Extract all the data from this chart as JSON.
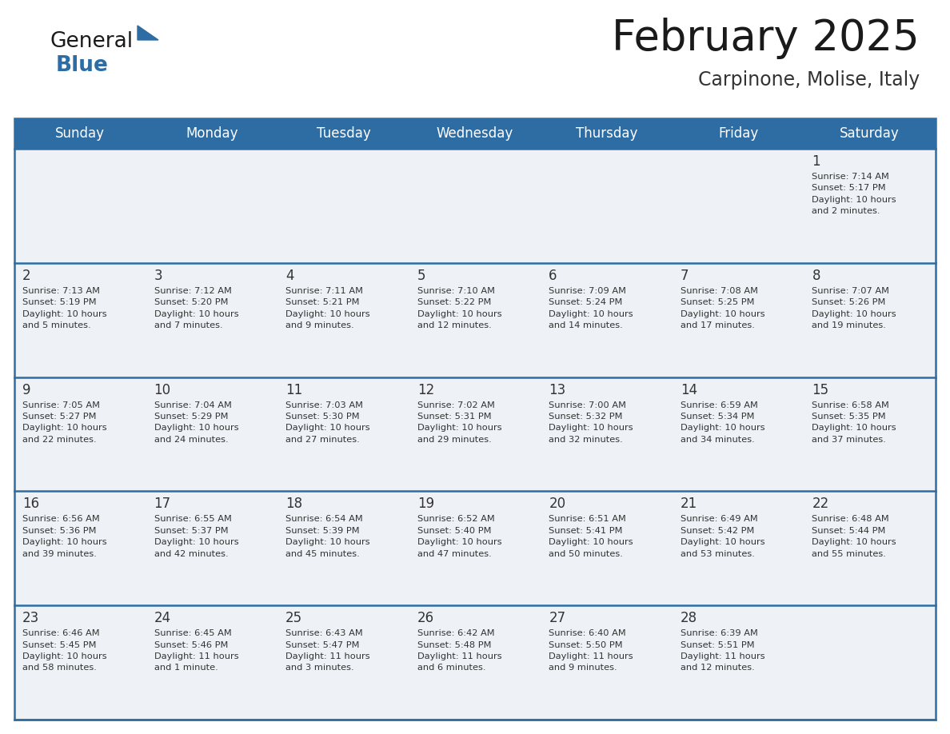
{
  "title": "February 2025",
  "subtitle": "Carpinone, Molise, Italy",
  "days_of_week": [
    "Sunday",
    "Monday",
    "Tuesday",
    "Wednesday",
    "Thursday",
    "Friday",
    "Saturday"
  ],
  "header_bg_color": "#2e6da4",
  "header_text_color": "#ffffff",
  "row_bg_color": "#eef2f7",
  "separator_color": "#2e6da4",
  "date_text_color": "#333333",
  "cell_text_color": "#333333",
  "title_color": "#1a1a1a",
  "subtitle_color": "#333333",
  "logo_general_color": "#1a1a1a",
  "logo_blue_color": "#2e6da4",
  "calendar_data": [
    [
      {
        "day": null,
        "info": ""
      },
      {
        "day": null,
        "info": ""
      },
      {
        "day": null,
        "info": ""
      },
      {
        "day": null,
        "info": ""
      },
      {
        "day": null,
        "info": ""
      },
      {
        "day": null,
        "info": ""
      },
      {
        "day": 1,
        "info": "Sunrise: 7:14 AM\nSunset: 5:17 PM\nDaylight: 10 hours\nand 2 minutes."
      }
    ],
    [
      {
        "day": 2,
        "info": "Sunrise: 7:13 AM\nSunset: 5:19 PM\nDaylight: 10 hours\nand 5 minutes."
      },
      {
        "day": 3,
        "info": "Sunrise: 7:12 AM\nSunset: 5:20 PM\nDaylight: 10 hours\nand 7 minutes."
      },
      {
        "day": 4,
        "info": "Sunrise: 7:11 AM\nSunset: 5:21 PM\nDaylight: 10 hours\nand 9 minutes."
      },
      {
        "day": 5,
        "info": "Sunrise: 7:10 AM\nSunset: 5:22 PM\nDaylight: 10 hours\nand 12 minutes."
      },
      {
        "day": 6,
        "info": "Sunrise: 7:09 AM\nSunset: 5:24 PM\nDaylight: 10 hours\nand 14 minutes."
      },
      {
        "day": 7,
        "info": "Sunrise: 7:08 AM\nSunset: 5:25 PM\nDaylight: 10 hours\nand 17 minutes."
      },
      {
        "day": 8,
        "info": "Sunrise: 7:07 AM\nSunset: 5:26 PM\nDaylight: 10 hours\nand 19 minutes."
      }
    ],
    [
      {
        "day": 9,
        "info": "Sunrise: 7:05 AM\nSunset: 5:27 PM\nDaylight: 10 hours\nand 22 minutes."
      },
      {
        "day": 10,
        "info": "Sunrise: 7:04 AM\nSunset: 5:29 PM\nDaylight: 10 hours\nand 24 minutes."
      },
      {
        "day": 11,
        "info": "Sunrise: 7:03 AM\nSunset: 5:30 PM\nDaylight: 10 hours\nand 27 minutes."
      },
      {
        "day": 12,
        "info": "Sunrise: 7:02 AM\nSunset: 5:31 PM\nDaylight: 10 hours\nand 29 minutes."
      },
      {
        "day": 13,
        "info": "Sunrise: 7:00 AM\nSunset: 5:32 PM\nDaylight: 10 hours\nand 32 minutes."
      },
      {
        "day": 14,
        "info": "Sunrise: 6:59 AM\nSunset: 5:34 PM\nDaylight: 10 hours\nand 34 minutes."
      },
      {
        "day": 15,
        "info": "Sunrise: 6:58 AM\nSunset: 5:35 PM\nDaylight: 10 hours\nand 37 minutes."
      }
    ],
    [
      {
        "day": 16,
        "info": "Sunrise: 6:56 AM\nSunset: 5:36 PM\nDaylight: 10 hours\nand 39 minutes."
      },
      {
        "day": 17,
        "info": "Sunrise: 6:55 AM\nSunset: 5:37 PM\nDaylight: 10 hours\nand 42 minutes."
      },
      {
        "day": 18,
        "info": "Sunrise: 6:54 AM\nSunset: 5:39 PM\nDaylight: 10 hours\nand 45 minutes."
      },
      {
        "day": 19,
        "info": "Sunrise: 6:52 AM\nSunset: 5:40 PM\nDaylight: 10 hours\nand 47 minutes."
      },
      {
        "day": 20,
        "info": "Sunrise: 6:51 AM\nSunset: 5:41 PM\nDaylight: 10 hours\nand 50 minutes."
      },
      {
        "day": 21,
        "info": "Sunrise: 6:49 AM\nSunset: 5:42 PM\nDaylight: 10 hours\nand 53 minutes."
      },
      {
        "day": 22,
        "info": "Sunrise: 6:48 AM\nSunset: 5:44 PM\nDaylight: 10 hours\nand 55 minutes."
      }
    ],
    [
      {
        "day": 23,
        "info": "Sunrise: 6:46 AM\nSunset: 5:45 PM\nDaylight: 10 hours\nand 58 minutes."
      },
      {
        "day": 24,
        "info": "Sunrise: 6:45 AM\nSunset: 5:46 PM\nDaylight: 11 hours\nand 1 minute."
      },
      {
        "day": 25,
        "info": "Sunrise: 6:43 AM\nSunset: 5:47 PM\nDaylight: 11 hours\nand 3 minutes."
      },
      {
        "day": 26,
        "info": "Sunrise: 6:42 AM\nSunset: 5:48 PM\nDaylight: 11 hours\nand 6 minutes."
      },
      {
        "day": 27,
        "info": "Sunrise: 6:40 AM\nSunset: 5:50 PM\nDaylight: 11 hours\nand 9 minutes."
      },
      {
        "day": 28,
        "info": "Sunrise: 6:39 AM\nSunset: 5:51 PM\nDaylight: 11 hours\nand 12 minutes."
      },
      {
        "day": null,
        "info": ""
      }
    ]
  ]
}
